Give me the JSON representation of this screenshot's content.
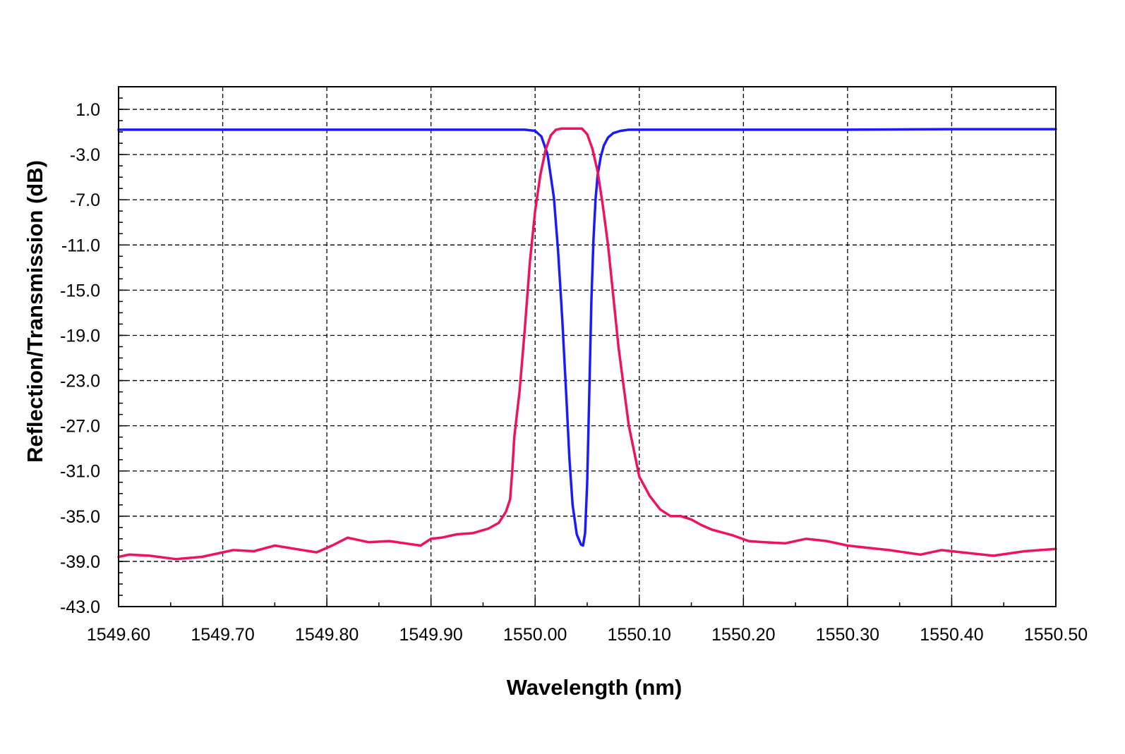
{
  "chart_data": {
    "type": "line",
    "title": "",
    "xlabel": "Wavelength (nm)",
    "ylabel": "Reflection/Transmission  (dB)",
    "xlim": [
      1549.6,
      1550.5
    ],
    "ylim": [
      -43.0,
      3.0
    ],
    "x_ticks": [
      "1549.60",
      "1549.70",
      "1549.80",
      "1549.90",
      "1550.00",
      "1550.10",
      "1550.20",
      "1550.30",
      "1550.40",
      "1550.50"
    ],
    "y_ticks": [
      "1.0",
      "-3.0",
      "-7.0",
      "-11.0",
      "-15.0",
      "-19.0",
      "-23.0",
      "-27.0",
      "-31.0",
      "-35.0",
      "-39.0",
      "-43.0"
    ],
    "grid": true,
    "legend": "none",
    "series": [
      {
        "color": "#1a1aff",
        "x": [
          1549.6,
          1549.7,
          1549.8,
          1549.9,
          1549.97,
          1549.99,
          1550.0,
          1550.006,
          1550.012,
          1550.018,
          1550.022,
          1550.026,
          1550.03,
          1550.033,
          1550.036,
          1550.04,
          1550.044,
          1550.046,
          1550.048,
          1550.05,
          1550.052,
          1550.054,
          1550.056,
          1550.058,
          1550.06,
          1550.063,
          1550.066,
          1550.07,
          1550.075,
          1550.082,
          1550.09,
          1550.1,
          1550.2,
          1550.3,
          1550.4,
          1550.5
        ],
        "y": [
          -0.8,
          -0.8,
          -0.8,
          -0.8,
          -0.8,
          -0.8,
          -0.9,
          -1.4,
          -3.0,
          -6.8,
          -11.5,
          -17.5,
          -24.5,
          -30.0,
          -34.0,
          -36.6,
          -37.5,
          -37.6,
          -36.5,
          -32.0,
          -24.0,
          -16.0,
          -10.5,
          -7.0,
          -4.8,
          -3.2,
          -2.2,
          -1.5,
          -1.1,
          -0.9,
          -0.8,
          -0.8,
          -0.8,
          -0.8,
          -0.75,
          -0.75
        ]
      },
      {
        "color": "#f0125f",
        "x": [
          1549.6,
          1549.61,
          1549.63,
          1549.655,
          1549.68,
          1549.71,
          1549.73,
          1549.75,
          1549.77,
          1549.79,
          1549.805,
          1549.82,
          1549.84,
          1549.86,
          1549.875,
          1549.89,
          1549.9,
          1549.91,
          1549.925,
          1549.94,
          1549.955,
          1549.965,
          1549.972,
          1549.976,
          1549.978,
          1549.98,
          1549.985,
          1549.99,
          1549.995,
          1550.0,
          1550.005,
          1550.01,
          1550.015,
          1550.02,
          1550.025,
          1550.03,
          1550.038,
          1550.045,
          1550.05,
          1550.055,
          1550.06,
          1550.065,
          1550.07,
          1550.075,
          1550.08,
          1550.085,
          1550.09,
          1550.1,
          1550.11,
          1550.12,
          1550.13,
          1550.14,
          1550.15,
          1550.16,
          1550.17,
          1550.19,
          1550.205,
          1550.22,
          1550.24,
          1550.26,
          1550.28,
          1550.3,
          1550.32,
          1550.34,
          1550.37,
          1550.39,
          1550.41,
          1550.44,
          1550.47,
          1550.5
        ],
        "y": [
          -38.6,
          -38.4,
          -38.5,
          -38.8,
          -38.6,
          -38.0,
          -38.1,
          -37.6,
          -37.9,
          -38.2,
          -37.6,
          -36.9,
          -37.3,
          -37.2,
          -37.4,
          -37.6,
          -37.0,
          -36.9,
          -36.6,
          -36.5,
          -36.1,
          -35.6,
          -34.6,
          -33.5,
          -31.0,
          -28.0,
          -24.0,
          -18.5,
          -12.5,
          -8.0,
          -4.8,
          -2.6,
          -1.3,
          -0.8,
          -0.7,
          -0.7,
          -0.7,
          -0.7,
          -1.2,
          -2.5,
          -4.5,
          -7.5,
          -11.0,
          -15.5,
          -20.0,
          -23.5,
          -27.0,
          -31.5,
          -33.2,
          -34.4,
          -35.0,
          -35.0,
          -35.3,
          -35.8,
          -36.2,
          -36.7,
          -37.2,
          -37.3,
          -37.4,
          -37.0,
          -37.2,
          -37.6,
          -37.8,
          -38.0,
          -38.4,
          -38.0,
          -38.2,
          -38.5,
          -38.1,
          -37.9
        ]
      }
    ]
  }
}
